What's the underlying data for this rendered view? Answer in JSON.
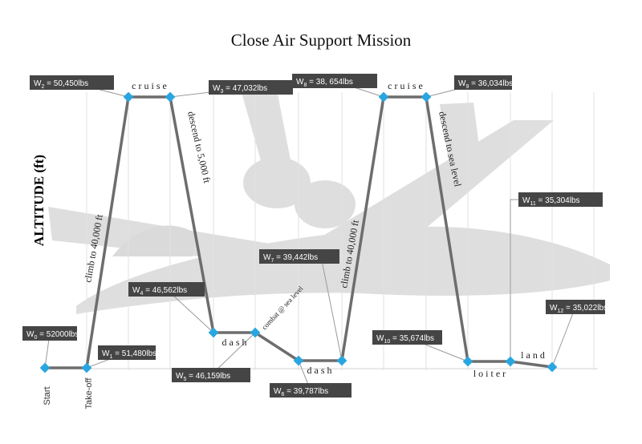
{
  "title": "Close Air Support Mission",
  "y_axis_label": "ALTITUDE (ft)",
  "colors": {
    "path": "#6d6d6d",
    "marker": "#29a6e0",
    "box": "#454545",
    "box_text": "#ffffff",
    "leader": "#9a9a9a",
    "grid": "#e2e2e2"
  },
  "x_labels": [
    {
      "text": "Start"
    },
    {
      "text": "Take-off"
    }
  ],
  "segment_labels": [
    {
      "text": "c r u i s e"
    },
    {
      "text": "c r u i s e"
    },
    {
      "text": "d a s h"
    },
    {
      "text": "d a s h"
    },
    {
      "text": "l o i t e r"
    },
    {
      "text": "l a n d"
    },
    {
      "text": "combat @ sea level"
    },
    {
      "text": "climb to 40,000 ft"
    },
    {
      "text": "descend to 5,000 ft"
    },
    {
      "text": "climb to 40,000 ft"
    },
    {
      "text": "descend to sea level"
    }
  ],
  "weights": [
    {
      "sub": "0",
      "value": "52000lbs"
    },
    {
      "sub": "1",
      "value": "51,480lbs"
    },
    {
      "sub": "2",
      "value": "50,450lbs"
    },
    {
      "sub": "3",
      "value": "47,032lbs"
    },
    {
      "sub": "4",
      "value": "46,562lbs"
    },
    {
      "sub": "5",
      "value": "46,159lbs"
    },
    {
      "sub": "6",
      "value": "39,787lbs"
    },
    {
      "sub": "7",
      "value": "39,442lbs"
    },
    {
      "sub": "8",
      "value": "38, 654lbs"
    },
    {
      "sub": "9",
      "value": "36,034lbs"
    },
    {
      "sub": "10",
      "value": "35,674lbs"
    },
    {
      "sub": "11",
      "value": "35,304lbs"
    },
    {
      "sub": "12",
      "value": "35,022lbs"
    }
  ]
}
